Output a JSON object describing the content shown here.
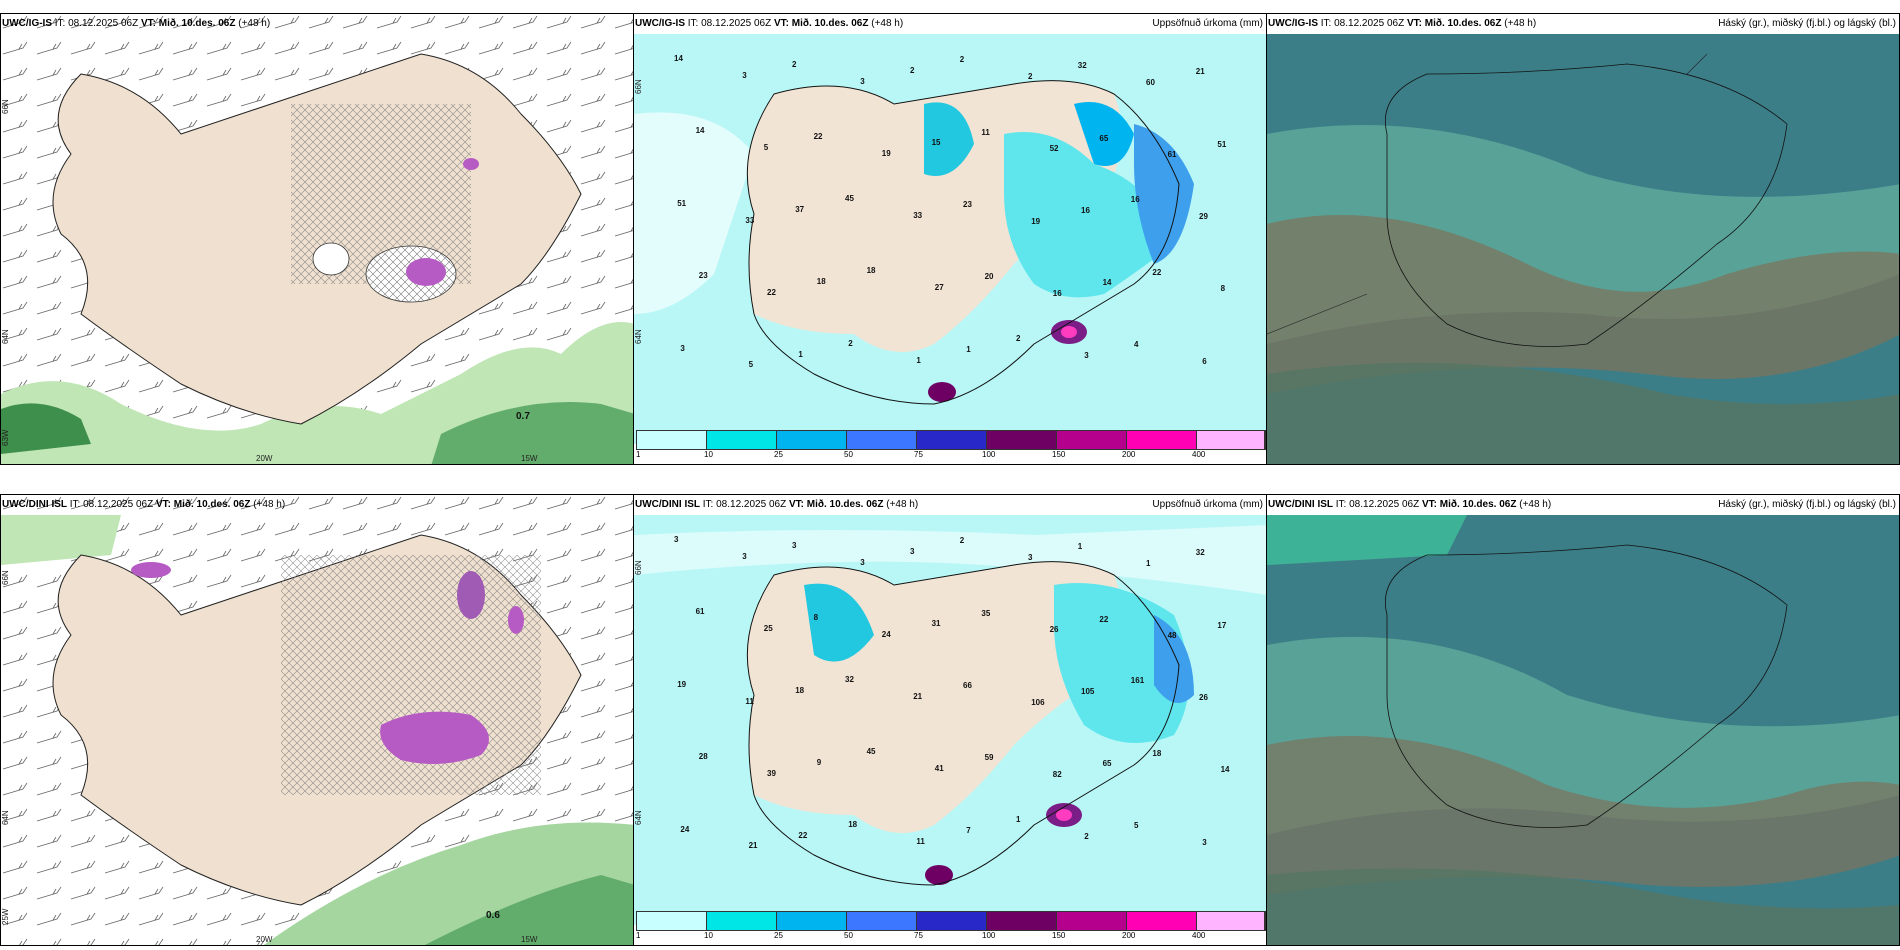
{
  "panels": {
    "top_left": {
      "title_model": "UWC/IG-IS",
      "title_it": "IT: 08.12.2025 06Z",
      "title_vt": "VT: Mið. 10.des. 06Z",
      "title_lead": "(+48 h)",
      "right_title": "",
      "lat_label_upper": "66N",
      "lat_label_lower": "64N",
      "lat_label_bottom": "63W",
      "lon_label_a": "20W",
      "lon_label_b": "15W",
      "value_label": "0.7"
    },
    "top_mid": {
      "title_model": "UWC/IG-IS",
      "title_it": "IT: 08.12.2025 06Z",
      "title_vt": "VT: Mið. 10.des. 06Z",
      "title_lead": "(+48 h)",
      "right_title": "Uppsöfnuð úrkoma (mm)",
      "lat_label_upper": "66N",
      "lat_label_lower": "64N"
    },
    "top_right": {
      "title_model": "UWC/IG-IS",
      "title_it": "IT: 08.12.2025 06Z",
      "title_vt": "VT: Mið. 10.des. 06Z",
      "title_lead": "(+48 h)",
      "right_title": "Háský (gr.), miðský (fj.bl.) og lágský (bl.)"
    },
    "bottom_left": {
      "title_model": "UWC/DINI ISL",
      "title_it": "IT: 08.12.2025 06Z",
      "title_vt": "VT: Mið. 10.des. 06Z",
      "title_lead": "(+48 h)",
      "right_title": "",
      "lat_label_upper": "66N",
      "lat_label_lower": "64N",
      "lat_label_bottom": "25W",
      "lon_label_a": "20W",
      "lon_label_b": "15W",
      "value_label": "0.6"
    },
    "bottom_mid": {
      "title_model": "UWC/DINI ISL",
      "title_it": "IT: 08.12.2025 06Z",
      "title_vt": "VT: Mið. 10.des. 06Z",
      "title_lead": "(+48 h)",
      "right_title": "Uppsöfnuð úrkoma (mm)",
      "lat_label_upper": "66N",
      "lat_label_lower": "64N"
    },
    "bottom_right": {
      "title_model": "UWC/DINI ISL",
      "title_it": "IT: 08.12.2025 06Z",
      "title_vt": "VT: Mið. 10.des. 06Z",
      "title_lead": "(+48 h)",
      "right_title": "Háský (gr.), miðský (fj.bl.) og lágský (bl.)"
    }
  },
  "precip_colorbar": {
    "ticks": [
      "1",
      "10",
      "25",
      "50",
      "75",
      "100",
      "150",
      "200",
      "400"
    ],
    "colors": [
      "#c8ffff",
      "#00e6e6",
      "#00b4f0",
      "#3c78ff",
      "#2828c8",
      "#6e0064",
      "#b4008c",
      "#ff00b4",
      "#ffb4ff"
    ]
  },
  "top_mid_labels": [
    "14",
    "3",
    "2",
    "3",
    "2",
    "2",
    "2",
    "32",
    "60",
    "21",
    "14",
    "5",
    "22",
    "19",
    "15",
    "11",
    "52",
    "65",
    "61",
    "51",
    "51",
    "33",
    "37",
    "45",
    "33",
    "23",
    "19",
    "16",
    "16",
    "29",
    "23",
    "22",
    "18",
    "18",
    "27",
    "20",
    "16",
    "14",
    "22",
    "8",
    "3",
    "5",
    "1",
    "2",
    "1",
    "1",
    "2",
    "3",
    "4",
    "6"
  ],
  "bottom_mid_labels": [
    "3",
    "3",
    "3",
    "3",
    "3",
    "2",
    "3",
    "1",
    "1",
    "32",
    "61",
    "25",
    "8",
    "24",
    "31",
    "35",
    "26",
    "22",
    "48",
    "17",
    "19",
    "11",
    "18",
    "32",
    "21",
    "66",
    "106",
    "105",
    "161",
    "26",
    "28",
    "39",
    "9",
    "45",
    "41",
    "59",
    "82",
    "65",
    "18",
    "14",
    "24",
    "21",
    "22",
    "18",
    "11",
    "7",
    "1",
    "2",
    "5",
    "3"
  ]
}
